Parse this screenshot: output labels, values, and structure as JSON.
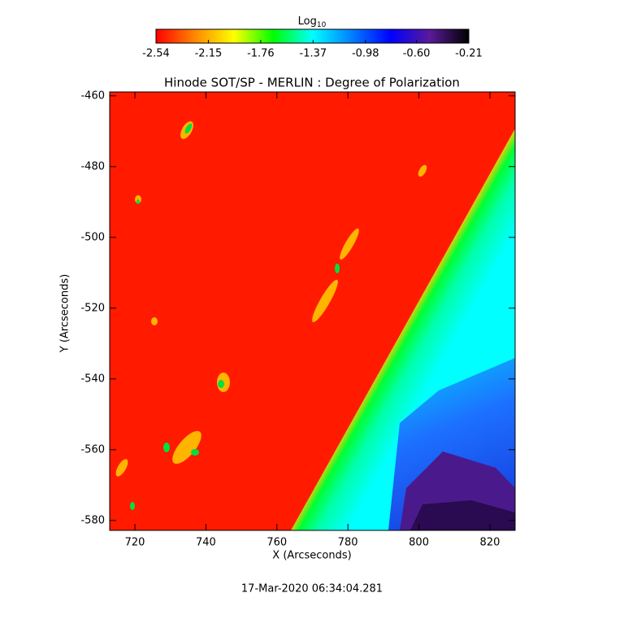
{
  "chart_data": {
    "type": "heatmap",
    "title": "Hinode SOT/SP - MERLIN : Degree of Polarization",
    "xlabel": "X (Arcseconds)",
    "ylabel": "Y (Arcseconds)",
    "xlim": [
      712.9,
      827.1
    ],
    "xticks": [
      720,
      740,
      760,
      780,
      800,
      820
    ],
    "ylim": [
      -582.8,
      -458.9
    ],
    "yticks": [
      -460,
      -480,
      -500,
      -520,
      -540,
      -560,
      -580
    ],
    "colorbar": {
      "label": "Log",
      "label_subscript": "10",
      "lim": [
        -2.54,
        -0.21
      ],
      "ticks": [
        -2.54,
        -2.15,
        -1.76,
        -1.37,
        -0.98,
        {
          "value": -0.6,
          "label": "-0.60"
        },
        -0.21
      ],
      "colormap": [
        "#ff0000",
        "#ff8800",
        "#ffff00",
        "#00ff00",
        "#00ffff",
        "#0080ff",
        "#0000ff",
        "#5a1a9a",
        "#000000"
      ]
    },
    "footer": "17-Mar-2020 06:34:04.281"
  }
}
